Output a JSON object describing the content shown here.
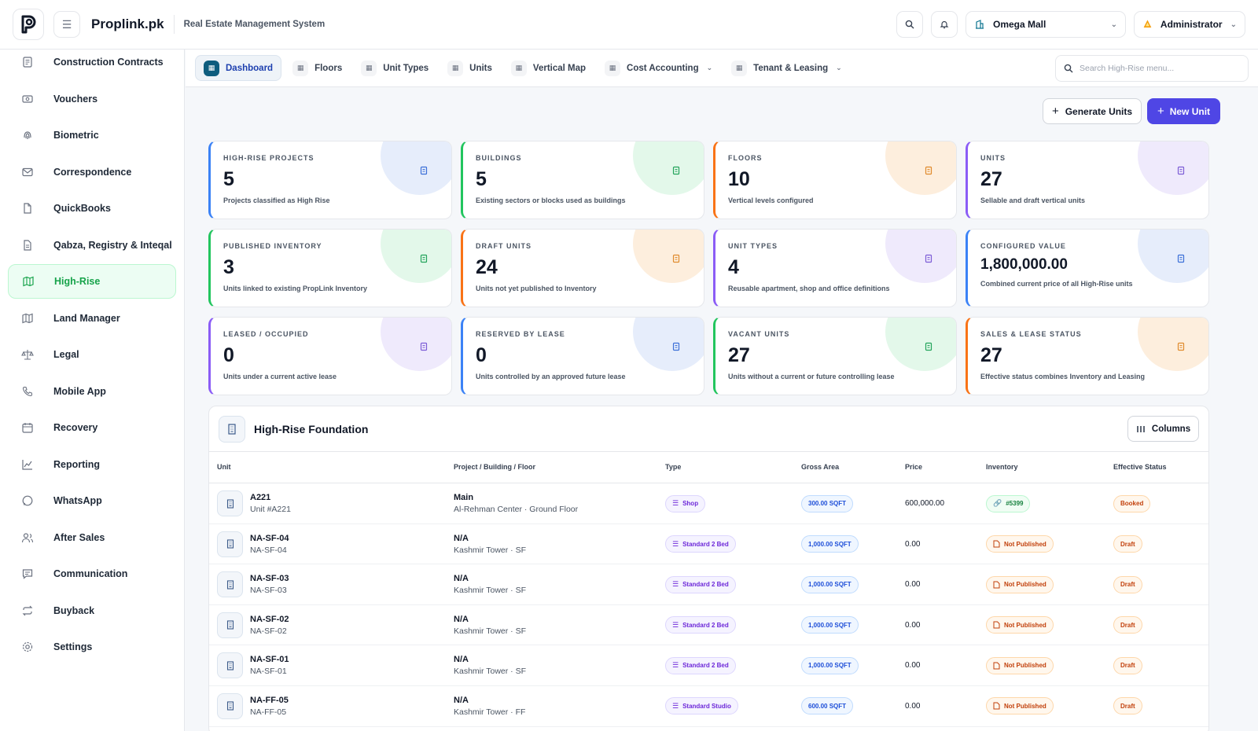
{
  "app": {
    "name": "Proplink.pk",
    "subtitle": "Real Estate Management System",
    "project_selector": "Omega Mall",
    "user": "Administrator"
  },
  "sidebar": {
    "items": [
      {
        "label": "Construction Contracts",
        "icon": "contract-icon"
      },
      {
        "label": "Vouchers",
        "icon": "voucher-icon"
      },
      {
        "label": "Biometric",
        "icon": "fingerprint-icon"
      },
      {
        "label": "Correspondence",
        "icon": "mail-icon"
      },
      {
        "label": "QuickBooks",
        "icon": "file-icon"
      },
      {
        "label": "Qabza, Registry & Inteqal",
        "icon": "document-icon"
      },
      {
        "label": "High-Rise",
        "icon": "map-icon",
        "active": true
      },
      {
        "label": "Land Manager",
        "icon": "map-icon"
      },
      {
        "label": "Legal",
        "icon": "scale-icon"
      },
      {
        "label": "Mobile App",
        "icon": "phone-icon"
      },
      {
        "label": "Recovery",
        "icon": "calendar-icon"
      },
      {
        "label": "Reporting",
        "icon": "chart-icon"
      },
      {
        "label": "WhatsApp",
        "icon": "whatsapp-icon"
      },
      {
        "label": "After Sales",
        "icon": "users-icon"
      },
      {
        "label": "Communication",
        "icon": "message-icon"
      },
      {
        "label": "Buyback",
        "icon": "repeat-icon"
      },
      {
        "label": "Settings",
        "icon": "gear-icon"
      }
    ]
  },
  "subnav": {
    "tabs": [
      {
        "label": "Dashboard",
        "active": true
      },
      {
        "label": "Floors"
      },
      {
        "label": "Unit Types"
      },
      {
        "label": "Units"
      },
      {
        "label": "Vertical Map"
      },
      {
        "label": "Cost Accounting",
        "dropdown": true
      },
      {
        "label": "Tenant & Leasing",
        "dropdown": true
      }
    ],
    "search_placeholder": "Search High-Rise menu..."
  },
  "actions": {
    "generate": "Generate Units",
    "new_unit": "New Unit"
  },
  "stats": [
    {
      "label": "HIGH-RISE PROJECTS",
      "value": "5",
      "desc": "Projects classified as High Rise",
      "accent": "#3b82f6",
      "bubble": "#e6edfb",
      "icon_color": "#3b6fd8"
    },
    {
      "label": "BUILDINGS",
      "value": "5",
      "desc": "Existing sectors or blocks used as buildings",
      "accent": "#22c55e",
      "bubble": "#e3f8ea",
      "icon_color": "#22a35a"
    },
    {
      "label": "FLOORS",
      "value": "10",
      "desc": "Vertical levels configured",
      "accent": "#f97316",
      "bubble": "#fdeedd",
      "icon_color": "#e08a2c"
    },
    {
      "label": "UNITS",
      "value": "27",
      "desc": "Sellable and draft vertical units",
      "accent": "#8b5cf6",
      "bubble": "#efeafc",
      "icon_color": "#7c5cd6"
    },
    {
      "label": "PUBLISHED INVENTORY",
      "value": "3",
      "desc": "Units linked to existing PropLink Inventory",
      "accent": "#22c55e",
      "bubble": "#e3f8ea",
      "icon_color": "#22a35a"
    },
    {
      "label": "DRAFT UNITS",
      "value": "24",
      "desc": "Units not yet published to Inventory",
      "accent": "#f97316",
      "bubble": "#fdeedd",
      "icon_color": "#e08a2c"
    },
    {
      "label": "UNIT TYPES",
      "value": "4",
      "desc": "Reusable apartment, shop and office definitions",
      "accent": "#8b5cf6",
      "bubble": "#efeafc",
      "icon_color": "#7c5cd6"
    },
    {
      "label": "CONFIGURED VALUE",
      "value": "1,800,000.00",
      "desc": "Combined current price of all High-Rise units",
      "accent": "#3b82f6",
      "bubble": "#e6edfb",
      "icon_color": "#3b6fd8"
    },
    {
      "label": "LEASED / OCCUPIED",
      "value": "0",
      "desc": "Units under a current active lease",
      "accent": "#8b5cf6",
      "bubble": "#efeafc",
      "icon_color": "#7c5cd6"
    },
    {
      "label": "RESERVED BY LEASE",
      "value": "0",
      "desc": "Units controlled by an approved future lease",
      "accent": "#3b82f6",
      "bubble": "#e6edfb",
      "icon_color": "#3b6fd8"
    },
    {
      "label": "VACANT UNITS",
      "value": "27",
      "desc": "Units without a current or future controlling lease",
      "accent": "#22c55e",
      "bubble": "#e3f8ea",
      "icon_color": "#22a35a"
    },
    {
      "label": "SALES & LEASE STATUS",
      "value": "27",
      "desc": "Effective status combines Inventory and Leasing",
      "accent": "#f97316",
      "bubble": "#fdeedd",
      "icon_color": "#e08a2c"
    }
  ],
  "table": {
    "title": "High-Rise Foundation",
    "columns_button": "Columns",
    "headers": [
      "Unit",
      "Project / Building / Floor",
      "Type",
      "Gross Area",
      "Price",
      "Inventory",
      "Effective Status"
    ],
    "rows": [
      {
        "unit": "A221",
        "unit_sub": "Unit #A221",
        "project": "Main",
        "project_sub": "Al-Rehman Center · Ground Floor",
        "type": "Shop",
        "area": "300.00 SQFT",
        "price": "600,000.00",
        "inventory": "#5399",
        "inventory_linked": true,
        "status": "Booked"
      },
      {
        "unit": "NA-SF-04",
        "unit_sub": "NA-SF-04",
        "project": "N/A",
        "project_sub": "Kashmir Tower · SF",
        "type": "Standard 2 Bed",
        "area": "1,000.00 SQFT",
        "price": "0.00",
        "inventory": "Not Published",
        "inventory_linked": false,
        "status": "Draft"
      },
      {
        "unit": "NA-SF-03",
        "unit_sub": "NA-SF-03",
        "project": "N/A",
        "project_sub": "Kashmir Tower · SF",
        "type": "Standard 2 Bed",
        "area": "1,000.00 SQFT",
        "price": "0.00",
        "inventory": "Not Published",
        "inventory_linked": false,
        "status": "Draft"
      },
      {
        "unit": "NA-SF-02",
        "unit_sub": "NA-SF-02",
        "project": "N/A",
        "project_sub": "Kashmir Tower · SF",
        "type": "Standard 2 Bed",
        "area": "1,000.00 SQFT",
        "price": "0.00",
        "inventory": "Not Published",
        "inventory_linked": false,
        "status": "Draft"
      },
      {
        "unit": "NA-SF-01",
        "unit_sub": "NA-SF-01",
        "project": "N/A",
        "project_sub": "Kashmir Tower · SF",
        "type": "Standard 2 Bed",
        "area": "1,000.00 SQFT",
        "price": "0.00",
        "inventory": "Not Published",
        "inventory_linked": false,
        "status": "Draft"
      },
      {
        "unit": "NA-FF-05",
        "unit_sub": "NA-FF-05",
        "project": "N/A",
        "project_sub": "Kashmir Tower · FF",
        "type": "Standard Studio",
        "area": "600.00 SQFT",
        "price": "0.00",
        "inventory": "Not Published",
        "inventory_linked": false,
        "status": "Draft"
      }
    ]
  }
}
